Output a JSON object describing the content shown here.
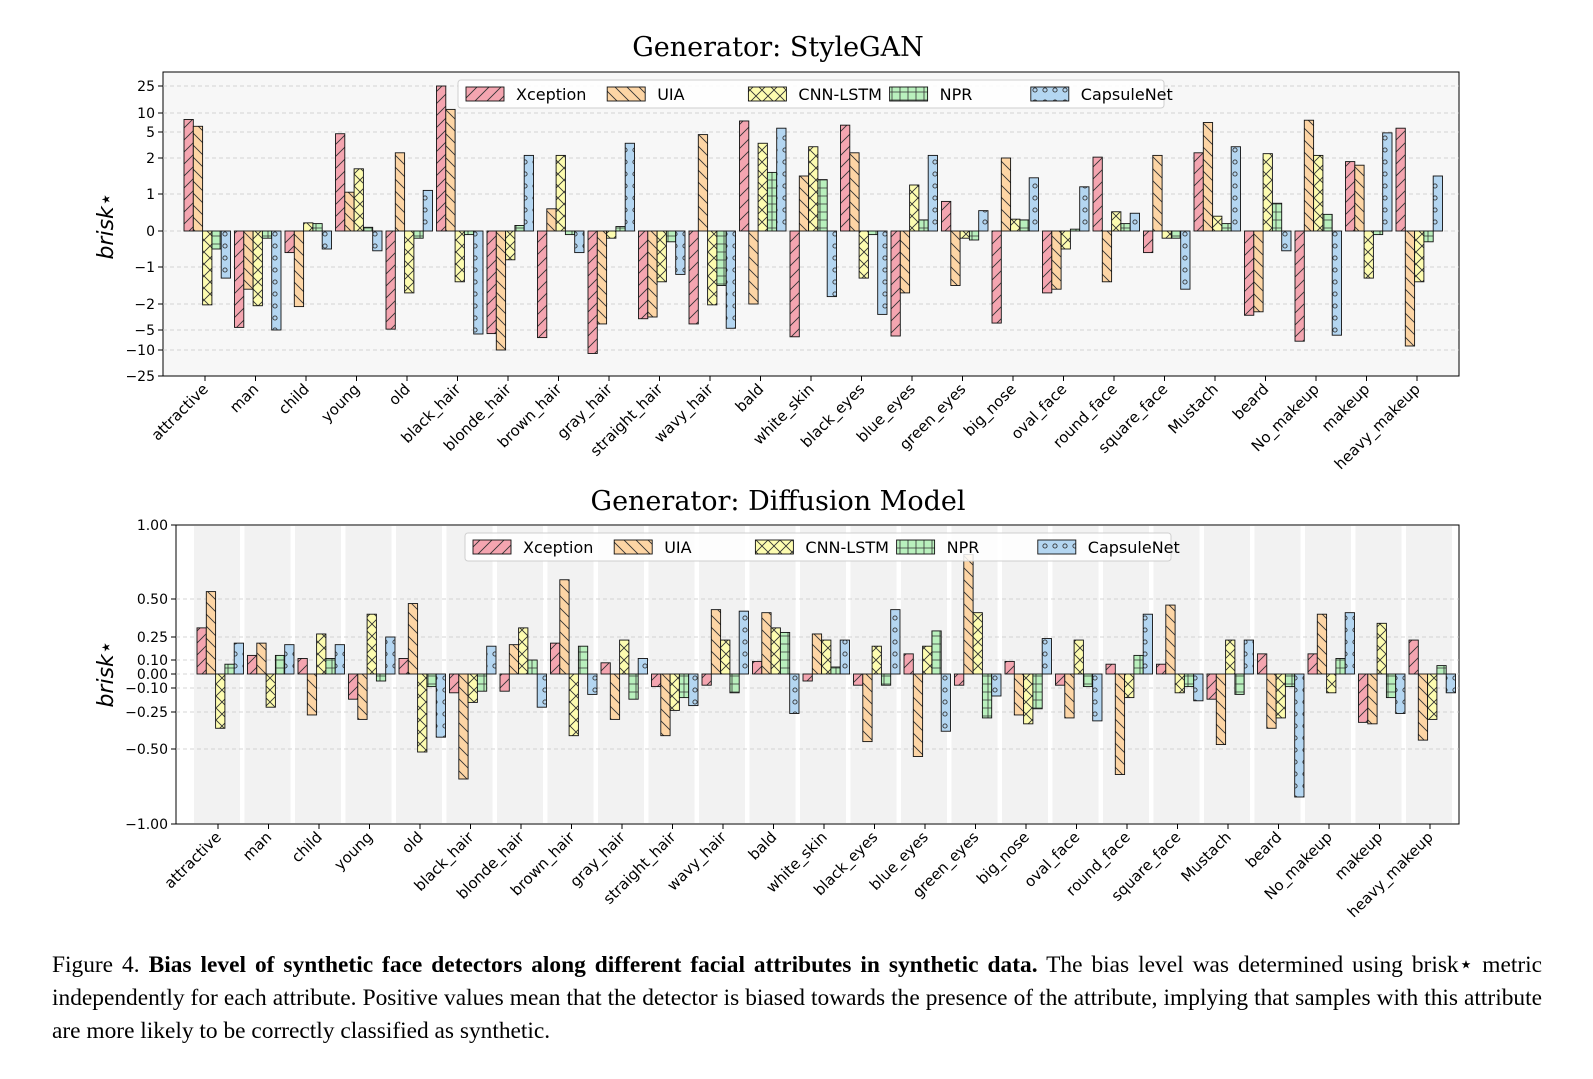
{
  "figure": {
    "label": "Figure 4.",
    "bold": "Bias level of synthetic face detectors along different facial attributes in synthetic data.",
    "text": "The bias level was determined using brisk⋆ metric independently for each attribute. Positive values mean that the detector is biased towards the presence of the attribute, implying that samples with this attribute are more likely to be correctly classified as synthetic."
  },
  "chart_data": [
    {
      "type": "bar",
      "title": "Generator:  StyleGAN",
      "ylabel": "brisk⋆",
      "yscale": "symlog",
      "ylim": [
        -25,
        25
      ],
      "yticks": [
        25,
        10,
        5,
        2,
        1,
        0,
        -1,
        -2,
        -5,
        -10,
        -25
      ],
      "ytick_labels": [
        "25",
        "10",
        "5",
        "2",
        "1",
        "0",
        "−1",
        "−2",
        "−5",
        "−10",
        "−25"
      ],
      "grid": true,
      "legend": "top-center",
      "categories": [
        "attractive",
        "man",
        "child",
        "young",
        "old",
        "black_hair",
        "blonde_hair",
        "brown_hair",
        "gray_hair",
        "straight_hair",
        "wavy_hair",
        "bald",
        "white_skin",
        "black_eyes",
        "blue_eyes",
        "green_eyes",
        "big_nose",
        "oval_face",
        "round_face",
        "square_face",
        "Mustach",
        "beard",
        "No_makeup",
        "makeup",
        "heavy_makeup"
      ],
      "series": [
        {
          "name": "Xception",
          "color": "#f4a5b0",
          "hatch": "/",
          "values": [
            8.3,
            -4.7,
            -0.6,
            4.8,
            -4.9,
            25,
            -5.9,
            -6.9,
            -12,
            -3.7,
            -4.3,
            7.9,
            -6.7,
            6.8,
            -6.5,
            0.8,
            -4.2,
            -1.7,
            2.1,
            -0.6,
            2.6,
            -3.3,
            -7.8,
            1.9,
            6
          ]
        },
        {
          "name": "UIA",
          "color": "#fdd5a5",
          "hatch": "\\",
          "values": [
            6.5,
            -1.6,
            -2.3,
            1.05,
            2.6,
            12,
            -10,
            0.6,
            -4.3,
            -3.5,
            4.7,
            -2,
            1.5,
            2.6,
            -1.7,
            -1.5,
            2,
            -1.6,
            -1.4,
            2.3,
            7.5,
            -2.9,
            8.1,
            1.8,
            -9
          ]
        },
        {
          "name": "CNN-LSTM",
          "color": "#fdfcb0",
          "hatch": "x",
          "values": [
            -2.1,
            -2.2,
            0.22,
            1.7,
            -1.7,
            -1.4,
            -0.8,
            2.3,
            -0.2,
            -1.4,
            -2.1,
            3.7,
            3.3,
            -1.3,
            1.25,
            -0.2,
            0.32,
            -0.5,
            0.52,
            -0.2,
            0.4,
            2.5,
            2.3,
            -1.3,
            -1.4
          ]
        },
        {
          "name": "NPR",
          "color": "#b9f0bd",
          "hatch": "+",
          "values": [
            -0.5,
            -0.2,
            0.2,
            0.1,
            -0.2,
            -0.1,
            0.15,
            -0.1,
            0.12,
            -0.3,
            -1.5,
            1.6,
            1.4,
            -0.1,
            0.3,
            -0.25,
            0.3,
            0.05,
            0.2,
            -0.2,
            0.2,
            0.75,
            0.45,
            -0.1,
            -0.3
          ]
        },
        {
          "name": "CapsuleNet",
          "color": "#b4d6f1",
          "hatch": "o",
          "values": [
            -1.3,
            -5,
            -0.5,
            -0.55,
            1.1,
            -6,
            2.3,
            -0.6,
            3.7,
            -1.2,
            -4.8,
            6,
            -1.8,
            -3.2,
            2.3,
            0.55,
            1.45,
            1.2,
            0.48,
            -1.6,
            3.3,
            -0.55,
            -6.3,
            4.9,
            1.5
          ]
        }
      ]
    },
    {
      "type": "bar",
      "title": "Generator:  Diffusion Model",
      "ylabel": "brisk⋆",
      "yscale": "symlog",
      "ylim": [
        -1,
        1
      ],
      "yticks": [
        1,
        0.5,
        0.25,
        0.1,
        0,
        -0.1,
        -0.25,
        -0.5,
        -1
      ],
      "ytick_labels": [
        "1.00",
        "0.50",
        "0.25",
        "0.10",
        "0.00",
        "−0.10",
        "−0.25",
        "−0.50",
        "−1.00"
      ],
      "grid": true,
      "legend": "top-center",
      "categories": [
        "attractive",
        "man",
        "child",
        "young",
        "old",
        "black_hair",
        "blonde_hair",
        "brown_hair",
        "gray_hair",
        "straight_hair",
        "wavy_hair",
        "bald",
        "white_skin",
        "black_eyes",
        "blue_eyes",
        "green_eyes",
        "big_nose",
        "oval_face",
        "round_face",
        "square_face",
        "Mustach",
        "beard",
        "No_makeup",
        "makeup",
        "heavy_makeup"
      ],
      "series": [
        {
          "name": "Xception",
          "color": "#f4a5b0",
          "hatch": "/",
          "values": [
            0.31,
            0.13,
            0.11,
            -0.17,
            0.11,
            -0.13,
            -0.12,
            0.21,
            0.08,
            -0.09,
            -0.08,
            0.09,
            -0.05,
            -0.08,
            0.14,
            -0.08,
            0.09,
            -0.08,
            0.07,
            0.07,
            -0.17,
            0.14,
            0.14,
            -0.32,
            0.23
          ]
        },
        {
          "name": "UIA",
          "color": "#fdd5a5",
          "hatch": "\\",
          "values": [
            0.55,
            0.21,
            -0.27,
            -0.3,
            0.47,
            -0.7,
            0.2,
            0.63,
            -0.3,
            -0.41,
            0.43,
            0.41,
            0.27,
            -0.45,
            -0.55,
            0.8,
            -0.27,
            -0.29,
            -0.67,
            0.46,
            -0.47,
            -0.36,
            0.4,
            -0.33,
            -0.44
          ]
        },
        {
          "name": "CNN-LSTM",
          "color": "#fdfcb0",
          "hatch": "x",
          "values": [
            -0.36,
            -0.22,
            0.27,
            0.4,
            -0.52,
            -0.19,
            0.31,
            -0.41,
            0.23,
            -0.24,
            0.23,
            0.31,
            0.23,
            0.19,
            0.19,
            0.41,
            -0.33,
            0.23,
            -0.16,
            -0.13,
            0.23,
            -0.29,
            -0.13,
            0.34,
            -0.3
          ]
        },
        {
          "name": "NPR",
          "color": "#b9f0bd",
          "hatch": "+",
          "values": [
            0.07,
            0.13,
            0.11,
            -0.05,
            -0.09,
            -0.12,
            0.1,
            0.19,
            -0.17,
            -0.16,
            -0.13,
            0.28,
            0.05,
            -0.08,
            0.29,
            -0.29,
            -0.23,
            -0.09,
            0.13,
            -0.09,
            -0.14,
            -0.09,
            0.11,
            -0.16,
            0.06
          ]
        },
        {
          "name": "CapsuleNet",
          "color": "#b4d6f1",
          "hatch": "o",
          "values": [
            0.21,
            0.2,
            0.2,
            0.25,
            -0.42,
            0.19,
            -0.22,
            -0.14,
            0.11,
            -0.21,
            0.42,
            -0.26,
            0.23,
            0.43,
            -0.38,
            -0.15,
            0.24,
            -0.31,
            0.4,
            -0.18,
            0.23,
            -0.82,
            0.41,
            -0.26,
            -0.13
          ]
        }
      ]
    }
  ]
}
